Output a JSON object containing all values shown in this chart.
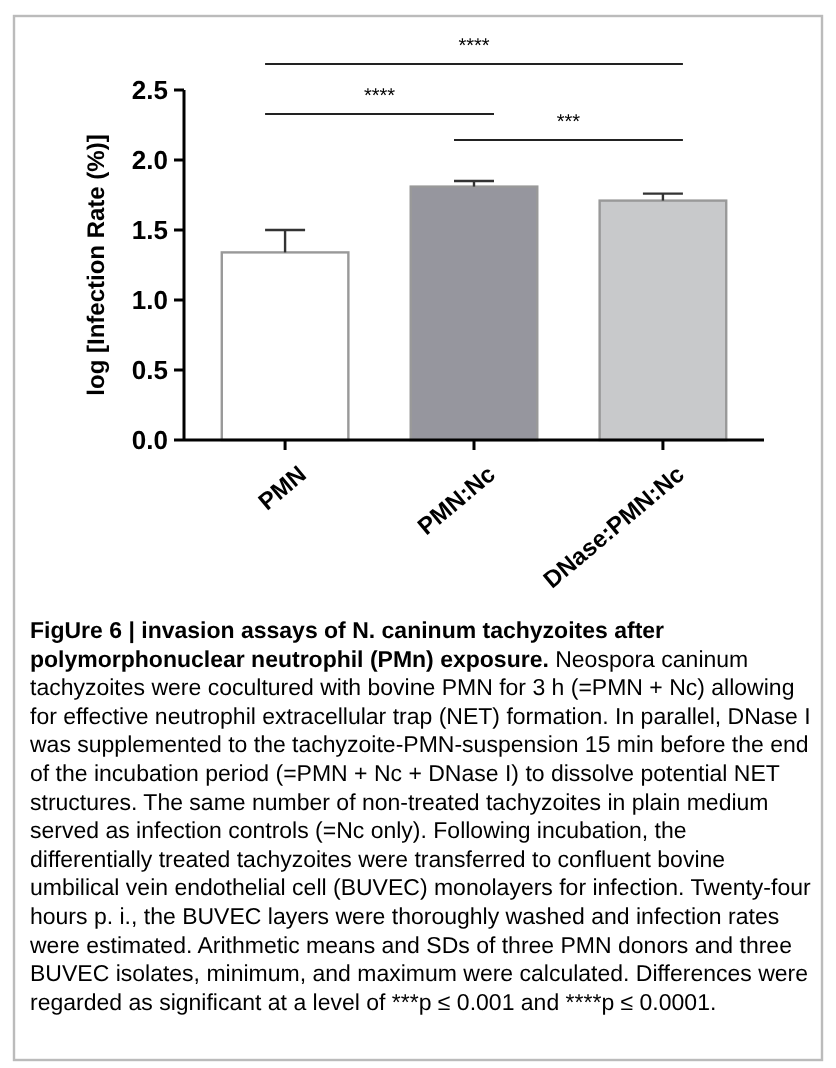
{
  "chart_data": {
    "type": "bar",
    "ylabel": "log [Infection Rate (%)]",
    "categories": [
      "PMN",
      "PMN:Nc",
      "DNase:PMN:Nc"
    ],
    "values": [
      1.34,
      1.81,
      1.71
    ],
    "colors": [
      "#ffffff",
      "#96969e",
      "#c8c9cb"
    ],
    "errors": [
      0.16,
      0.04,
      0.05
    ],
    "ylim": [
      0,
      2.5
    ],
    "yticks": [
      {
        "value": 0,
        "label": "0.0"
      },
      {
        "value": 0.5,
        "label": "0.5"
      },
      {
        "value": 1,
        "label": "1.0"
      },
      {
        "value": 1.5,
        "label": "1.5"
      },
      {
        "value": 2,
        "label": "2.0"
      },
      {
        "value": 2.5,
        "label": "2.5"
      }
    ],
    "grid": false,
    "annotations": [
      "****",
      "****",
      "***",
      "FigUre 6 | invasion assays of N. caninum tachyzoites after polymorphonuclear neutrophil (PMn) exposure.",
      "Neospora caninum tachyzoites were cocultured with bovine PMN for 3 h (=PMN + Nc) allowing for effective neutrophil extracellular trap (NET) formation. In parallel, DNase I was supplemented to the tachyzoite-PMN-suspension 15 min before the end of the incubation period (=PMN + Nc + DNase I) to dissolve potential NET structures. The same number of non-treated tachyzoites in plain medium served as infection controls (=Nc only). Following incubation, the differentially treated tachyzoites were transferred to confluent bovine umbilical vein endothelial cell (BUVEC) monolayers for infection. Twenty-four hours p. i., the BUVEC layers were thoroughly washed and infection rates were estimated. Arithmetic means and SDs of three PMN donors and three BUVEC isolates, minimum, and maximum were calculated. Differences were regarded as significant at a level of ***p ≤ 0.001 and ****p ≤ 0.0001."
    ]
  }
}
